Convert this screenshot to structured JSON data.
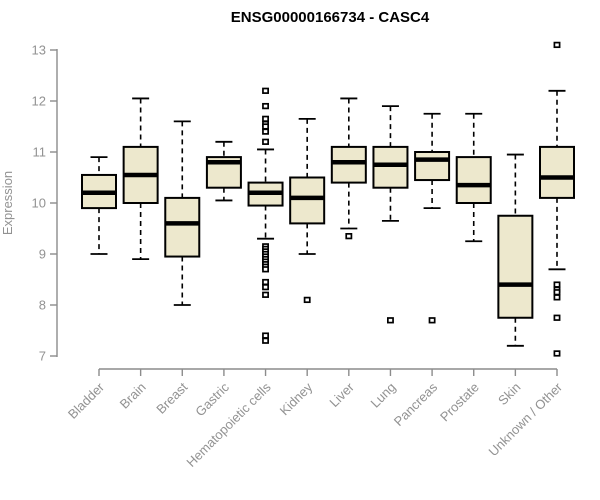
{
  "title": "ENSG00000166734 - CASC4",
  "chart_data": {
    "type": "boxplot",
    "title": "ENSG00000166734 - CASC4",
    "xlabel": "",
    "ylabel": "Expression",
    "ylim": [
      7,
      13
    ],
    "yticks": [
      7,
      8,
      9,
      10,
      11,
      12,
      13
    ],
    "grid": false,
    "legend": "none",
    "categories": [
      "Bladder",
      "Brain",
      "Breast",
      "Gastric",
      "Hematopoietic cells",
      "Kidney",
      "Liver",
      "Lung",
      "Pancreas",
      "Prostate",
      "Skin",
      "Unknown / Other"
    ],
    "series": [
      {
        "name": "Bladder",
        "low": 9.0,
        "q1": 9.9,
        "median": 10.2,
        "q3": 10.55,
        "high": 10.9,
        "outliers": []
      },
      {
        "name": "Brain",
        "low": 8.9,
        "q1": 10.0,
        "median": 10.55,
        "q3": 11.1,
        "high": 12.05,
        "outliers": []
      },
      {
        "name": "Breast",
        "low": 8.0,
        "q1": 8.95,
        "median": 9.6,
        "q3": 10.1,
        "high": 11.6,
        "outliers": []
      },
      {
        "name": "Gastric",
        "low": 10.05,
        "q1": 10.3,
        "median": 10.8,
        "q3": 10.9,
        "high": 11.2,
        "outliers": []
      },
      {
        "name": "Hematopoietic cells",
        "low": 9.3,
        "q1": 9.95,
        "median": 10.2,
        "q3": 10.4,
        "high": 11.05,
        "outliers": [
          12.2,
          11.9,
          11.65,
          11.55,
          11.5,
          11.4,
          11.2,
          9.15,
          9.1,
          9.05,
          9.0,
          8.95,
          8.9,
          8.85,
          8.8,
          8.75,
          8.7,
          8.45,
          8.35,
          8.2,
          7.4,
          7.3
        ]
      },
      {
        "name": "Kidney",
        "low": 9.0,
        "q1": 9.6,
        "median": 10.1,
        "q3": 10.5,
        "high": 11.65,
        "outliers": [
          8.1
        ]
      },
      {
        "name": "Liver",
        "low": 9.5,
        "q1": 10.4,
        "median": 10.8,
        "q3": 11.1,
        "high": 12.05,
        "outliers": [
          9.35
        ]
      },
      {
        "name": "Lung",
        "low": 9.65,
        "q1": 10.3,
        "median": 10.75,
        "q3": 11.1,
        "high": 11.9,
        "outliers": [
          7.7
        ]
      },
      {
        "name": "Pancreas",
        "low": 9.9,
        "q1": 10.45,
        "median": 10.85,
        "q3": 11.0,
        "high": 11.75,
        "outliers": [
          7.7
        ]
      },
      {
        "name": "Prostate",
        "low": 9.25,
        "q1": 10.0,
        "median": 10.35,
        "q3": 10.9,
        "high": 11.75,
        "outliers": []
      },
      {
        "name": "Skin",
        "low": 7.2,
        "q1": 7.75,
        "median": 8.4,
        "q3": 9.75,
        "high": 10.95,
        "outliers": []
      },
      {
        "name": "Unknown / Other",
        "low": 8.7,
        "q1": 10.1,
        "median": 10.5,
        "q3": 11.1,
        "high": 12.2,
        "outliers": [
          13.1,
          8.4,
          8.3,
          8.25,
          8.15,
          7.75,
          7.05
        ]
      }
    ],
    "colors": {
      "box_fill": "#EDE8CD",
      "box_stroke": "#000000",
      "median": "#000000",
      "whisker": "#000000",
      "axis_line": "#8C8C8C",
      "axis_text": "#929292",
      "title_text": "#000000",
      "background": "#FFFFFF"
    }
  }
}
